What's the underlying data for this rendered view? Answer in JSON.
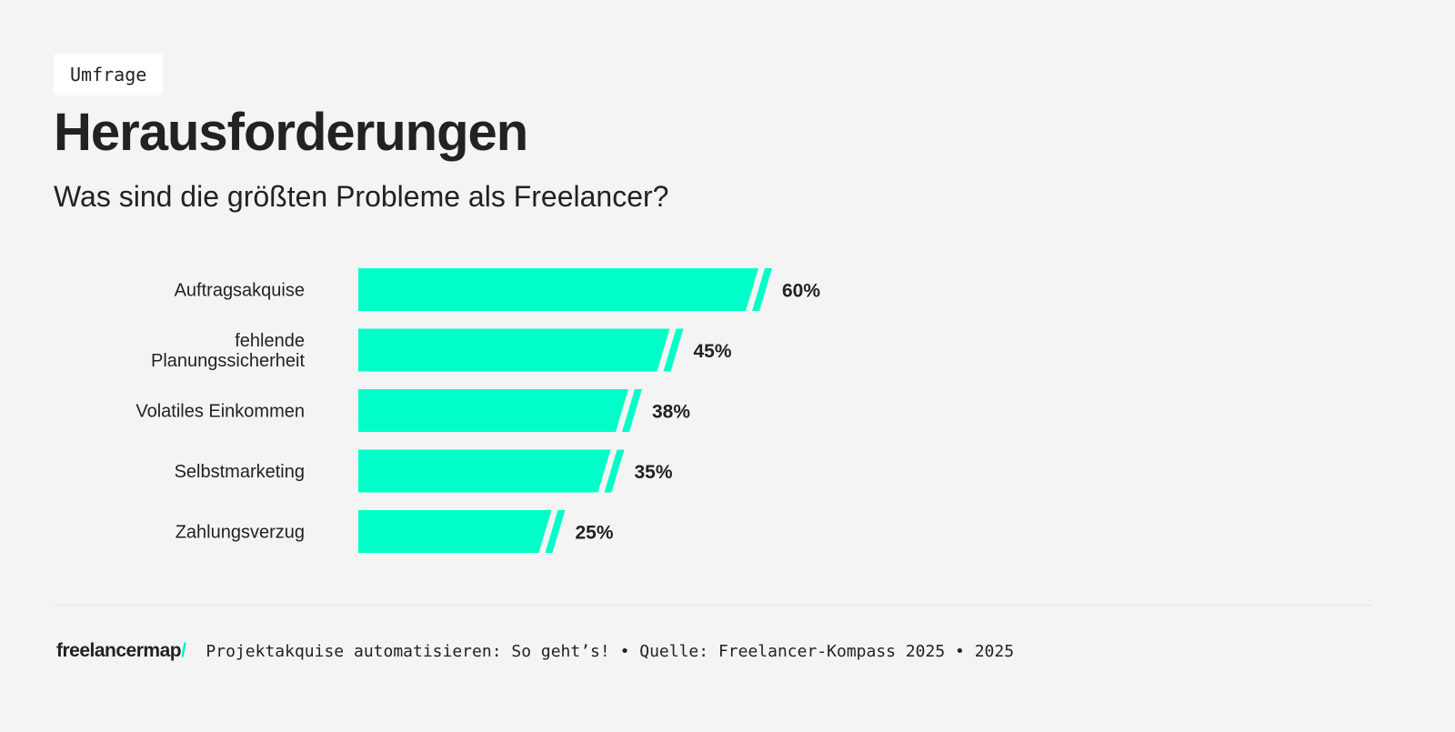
{
  "tag": "Umfrage",
  "title": "Herausforderungen",
  "subtitle": "Was sind die größten Probleme als Freelancer?",
  "chart_data": {
    "type": "bar",
    "orientation": "horizontal",
    "categories": [
      "Auftragsakquise",
      "fehlende Planungssicherheit",
      "Volatiles Einkommen",
      "Selbstmarketing",
      "Zahlungsverzug"
    ],
    "values": [
      60,
      45,
      38,
      35,
      25
    ],
    "value_labels": [
      "60%",
      "45%",
      "38%",
      "35%",
      "25%"
    ],
    "unit": "%",
    "bar_color": "#00ffc8",
    "grid": false
  },
  "footer": {
    "logo_text": "freelancermap",
    "logo_slash": "/",
    "text": "Projektakquise automatisieren: So geht’s! • Quelle: Freelancer-Kompass 2025 • 2025"
  }
}
